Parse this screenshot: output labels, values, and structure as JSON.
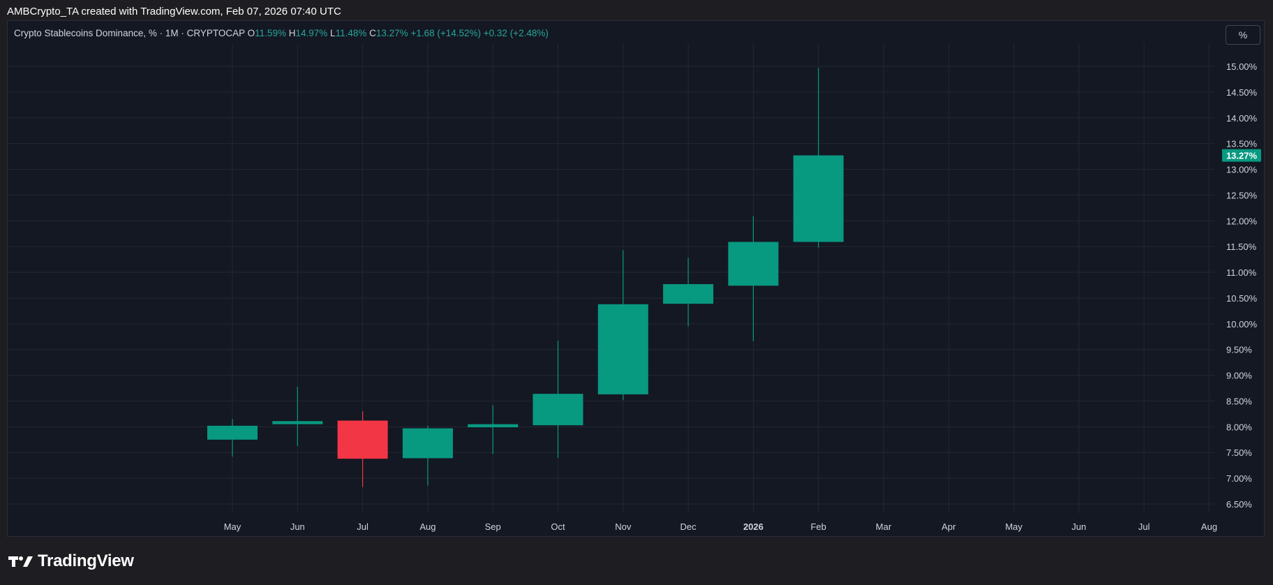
{
  "header": {
    "attribution": "AMBCrypto_TA created with TradingView.com, Feb 07, 2026 07:40 UTC"
  },
  "legend": {
    "symbol": "Crypto Stablecoins Dominance, % · 1M · CRYPTOCAP",
    "o_label": "O",
    "o_value": "11.59%",
    "h_label": "H",
    "h_value": "14.97%",
    "l_label": "L",
    "l_value": "11.48%",
    "c_label": "C",
    "c_value": "13.27%",
    "change": "+1.68 (+14.52%)",
    "change2": "+0.32 (+2.48%)"
  },
  "controls": {
    "percent_button": "%"
  },
  "price_badge": "13.27%",
  "brand": {
    "name": "TradingView"
  },
  "colors": {
    "up": "#089981",
    "down": "#f23645",
    "background": "#141823",
    "grid": "#232733",
    "axis_text": "#d1d4dc"
  },
  "chart_data": {
    "type": "candlestick",
    "title": "Crypto Stablecoins Dominance, % · 1M · CRYPTOCAP",
    "ylim": [
      6.3,
      15.3
    ],
    "yticks": [
      "6.50%",
      "7.00%",
      "7.50%",
      "8.00%",
      "8.50%",
      "9.00%",
      "9.50%",
      "10.00%",
      "10.50%",
      "11.00%",
      "11.50%",
      "12.00%",
      "12.50%",
      "13.00%",
      "13.50%",
      "14.00%",
      "14.50%",
      "15.00%"
    ],
    "ytick_values": [
      6.5,
      7.0,
      7.5,
      8.0,
      8.5,
      9.0,
      9.5,
      10.0,
      10.5,
      11.0,
      11.5,
      12.0,
      12.5,
      13.0,
      13.5,
      14.0,
      14.5,
      15.0
    ],
    "x_labels": [
      "May",
      "Jun",
      "Jul",
      "Aug",
      "Sep",
      "Oct",
      "Nov",
      "Dec",
      "2026",
      "Feb",
      "Mar",
      "Apr",
      "May",
      "Jun",
      "Jul",
      "Aug"
    ],
    "x_label_bold": [
      false,
      false,
      false,
      false,
      false,
      false,
      false,
      false,
      true,
      false,
      false,
      false,
      false,
      false,
      false,
      false
    ],
    "grid": true,
    "candles": [
      {
        "month": "May",
        "open": 7.75,
        "high": 8.15,
        "low": 7.42,
        "close": 8.02
      },
      {
        "month": "Jun",
        "open": 8.05,
        "high": 8.78,
        "low": 7.63,
        "close": 8.11
      },
      {
        "month": "Jul",
        "open": 8.12,
        "high": 8.3,
        "low": 6.83,
        "close": 7.38
      },
      {
        "month": "Aug",
        "open": 7.39,
        "high": 8.02,
        "low": 6.86,
        "close": 7.97
      },
      {
        "month": "Sep",
        "open": 7.99,
        "high": 8.42,
        "low": 7.47,
        "close": 8.05
      },
      {
        "month": "Oct",
        "open": 8.03,
        "high": 9.67,
        "low": 7.4,
        "close": 8.64
      },
      {
        "month": "Nov",
        "open": 8.63,
        "high": 11.43,
        "low": 8.52,
        "close": 10.38
      },
      {
        "month": "Dec",
        "open": 10.39,
        "high": 11.28,
        "low": 9.95,
        "close": 10.77
      },
      {
        "month": "2026",
        "open": 10.74,
        "high": 12.09,
        "low": 9.66,
        "close": 11.59
      },
      {
        "month": "Feb",
        "open": 11.59,
        "high": 14.97,
        "low": 11.48,
        "close": 13.27
      }
    ],
    "last_value": 13.27
  }
}
